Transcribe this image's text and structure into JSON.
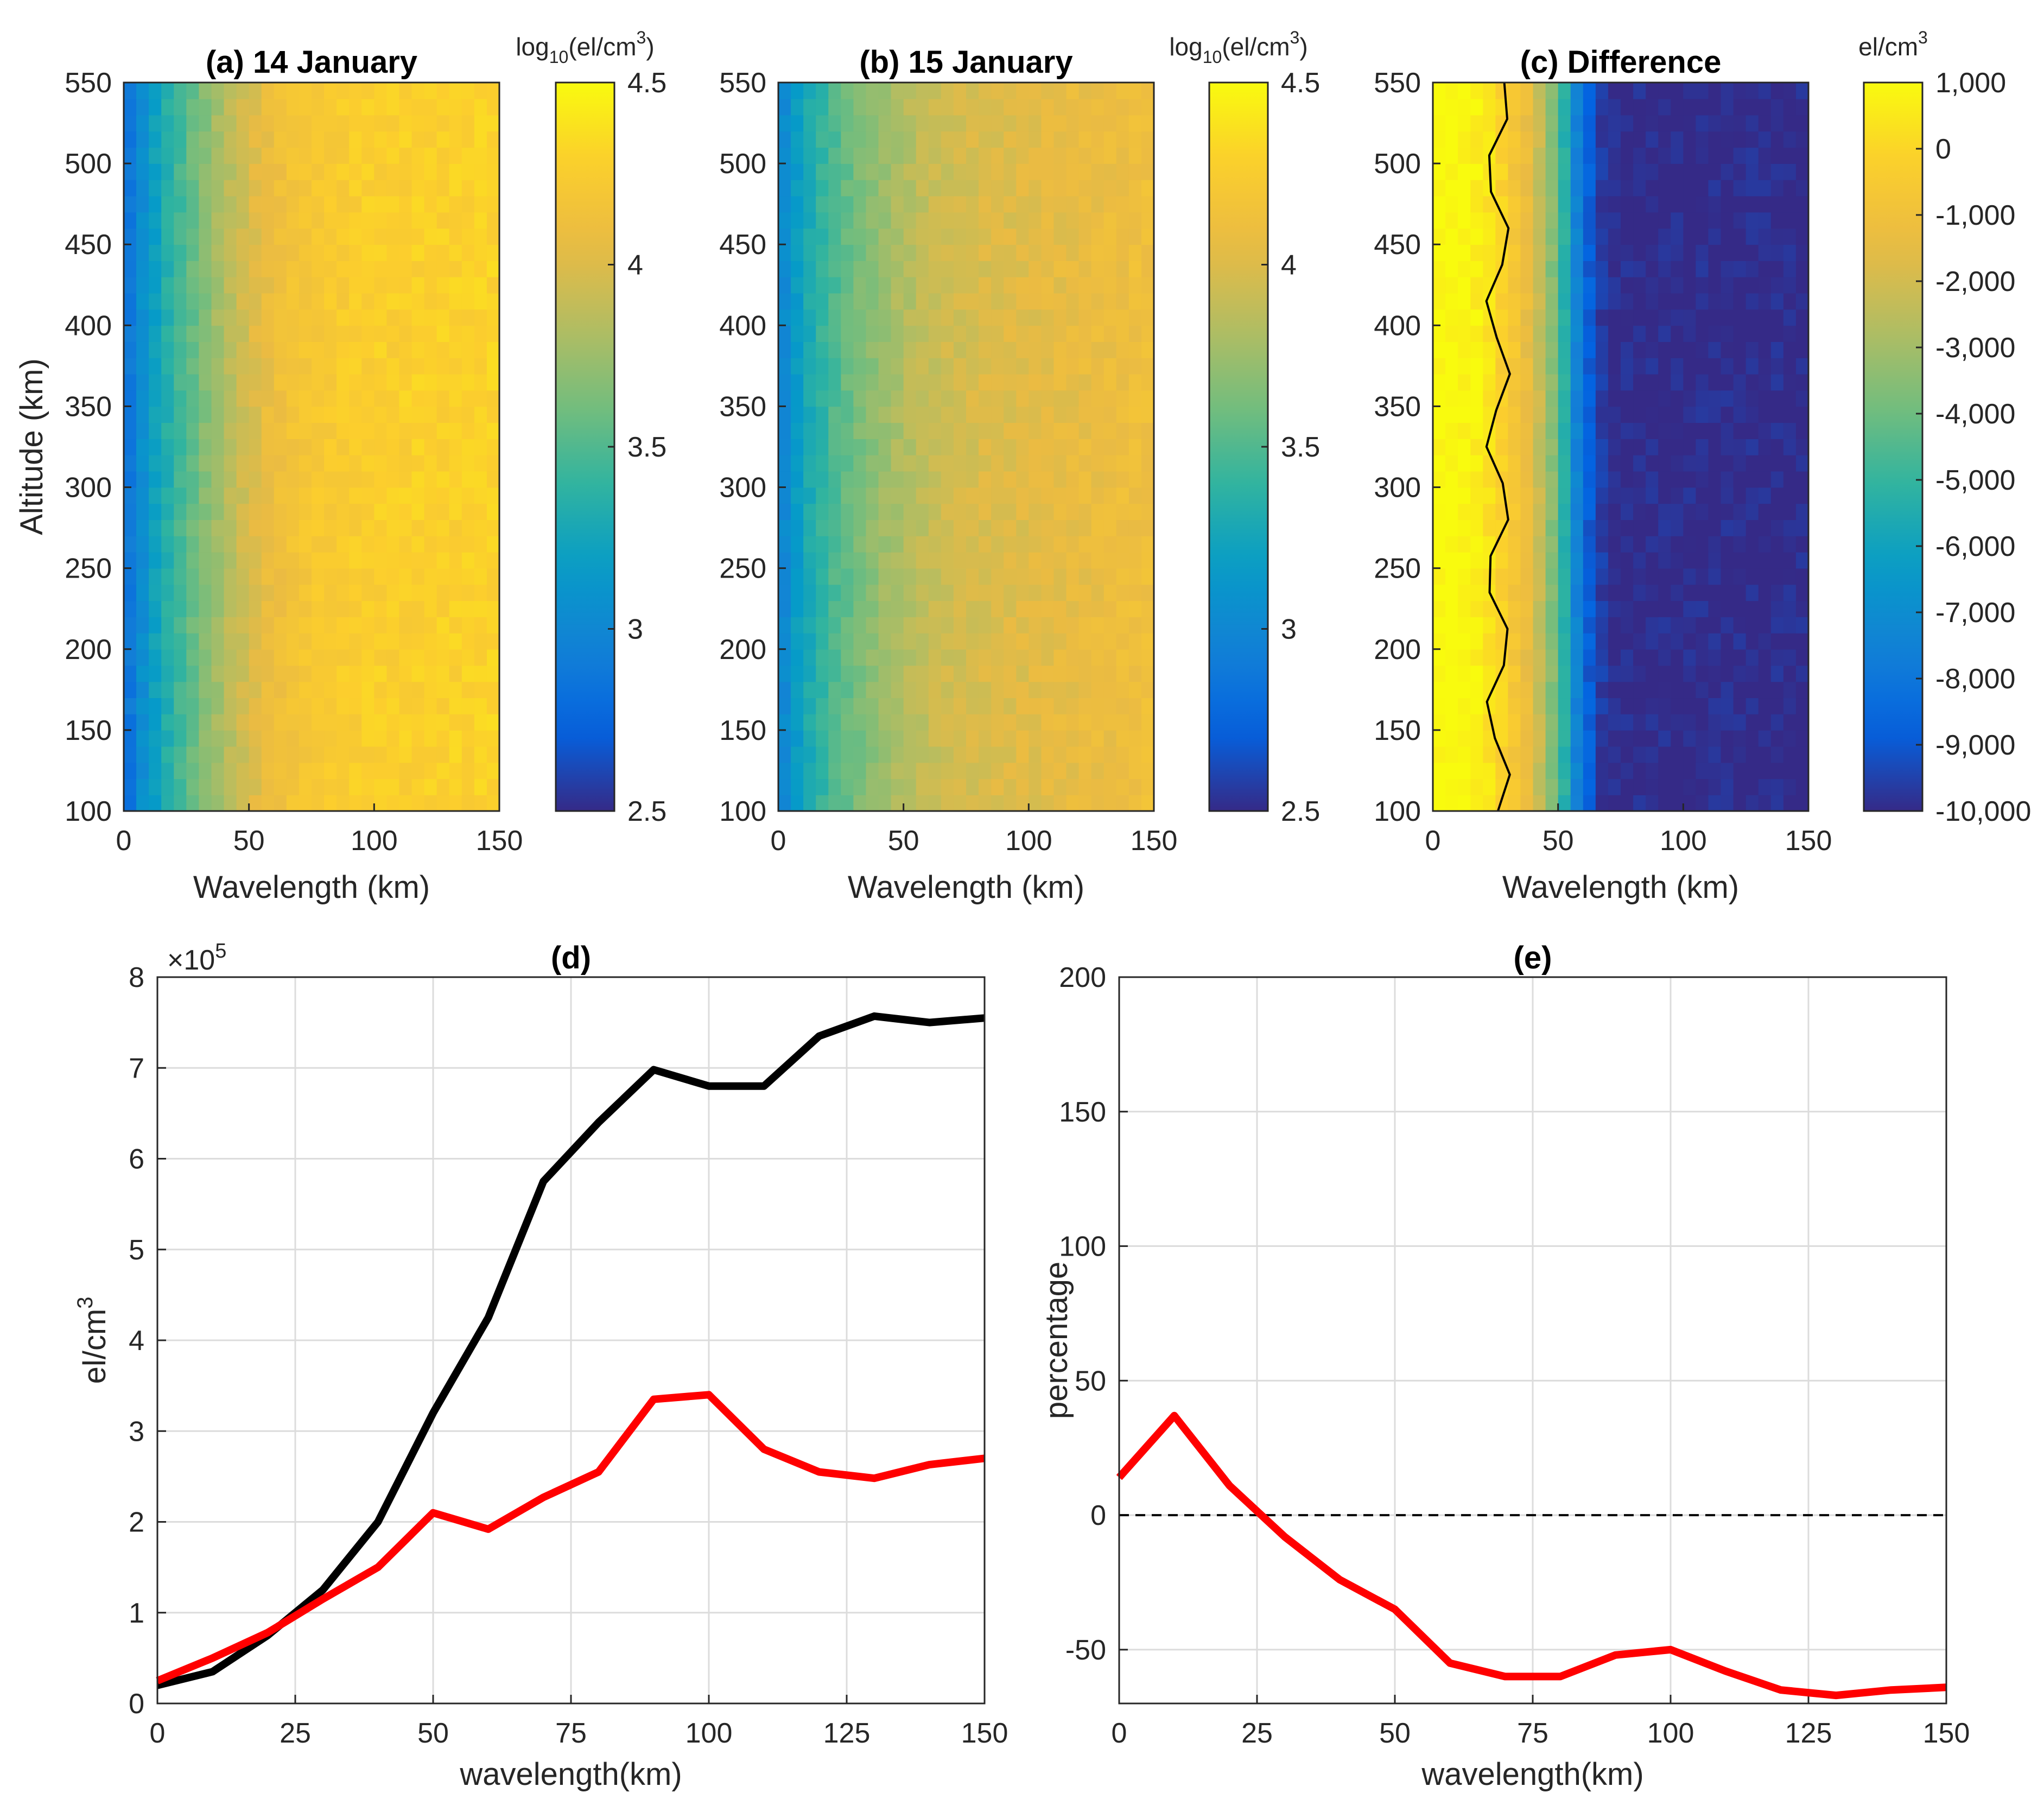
{
  "chart_data": [
    {
      "type": "heatmap",
      "title": "(a) 14 January",
      "xlabel": "Wavelength (km)",
      "ylabel": "Altitude (km)",
      "xlim": [
        0,
        150
      ],
      "ylim": [
        100,
        550
      ],
      "xticks": [
        "0",
        "50",
        "100",
        "150"
      ],
      "yticks": [
        "100",
        "150",
        "200",
        "250",
        "300",
        "350",
        "400",
        "450",
        "500",
        "550"
      ],
      "colorbar": {
        "label_main": "log",
        "label_sub": "10",
        "label_rest": "(el/cm",
        "label_sup": "3",
        "label_end": ")",
        "range": [
          2.5,
          4.5
        ],
        "ticks": [
          "2.5",
          "3",
          "3.5",
          "4",
          "4.5"
        ],
        "colormap": "parula"
      },
      "x_centers": [
        0,
        10,
        20,
        30,
        40,
        50,
        60,
        70,
        80,
        90,
        100,
        110,
        120,
        130,
        140,
        150
      ],
      "values_by_x": [
        2.78,
        3.15,
        3.4,
        3.62,
        3.82,
        3.98,
        4.1,
        4.18,
        4.22,
        4.25,
        4.27,
        4.27,
        4.28,
        4.28,
        4.29,
        4.3
      ]
    },
    {
      "type": "heatmap",
      "title": "(b) 15 January",
      "xlabel": "Wavelength (km)",
      "ylabel": "",
      "xlim": [
        0,
        150
      ],
      "ylim": [
        100,
        550
      ],
      "xticks": [
        "0",
        "50",
        "100",
        "150"
      ],
      "yticks": [
        "100",
        "150",
        "200",
        "250",
        "300",
        "350",
        "400",
        "450",
        "500",
        "550"
      ],
      "colorbar": {
        "label_main": "log",
        "label_sub": "10",
        "label_rest": "(el/cm",
        "label_sup": "3",
        "label_end": ")",
        "range": [
          2.5,
          4.5
        ],
        "ticks": [
          "2.5",
          "3",
          "3.5",
          "4",
          "4.5"
        ],
        "colormap": "parula"
      },
      "x_centers": [
        0,
        10,
        20,
        30,
        40,
        50,
        60,
        70,
        80,
        90,
        100,
        110,
        120,
        130,
        140,
        150
      ],
      "values_by_x": [
        2.95,
        3.25,
        3.45,
        3.6,
        3.72,
        3.82,
        3.9,
        3.95,
        3.98,
        4.0,
        4.02,
        4.04,
        4.06,
        4.08,
        4.1,
        4.12
      ]
    },
    {
      "type": "heatmap",
      "title": "(c) Difference",
      "xlabel": "Wavelength (km)",
      "ylabel": "",
      "xlim": [
        0,
        150
      ],
      "ylim": [
        100,
        550
      ],
      "xticks": [
        "0",
        "50",
        "100",
        "150"
      ],
      "yticks": [
        "100",
        "150",
        "200",
        "250",
        "300",
        "350",
        "400",
        "450",
        "500",
        "550"
      ],
      "colorbar": {
        "label_main": "el/cm",
        "label_sup": "3",
        "range": [
          -10000,
          1000
        ],
        "ticks": [
          "-10,000",
          "-9,000",
          "-8,000",
          "-7,000",
          "-6,000",
          "-5,000",
          "-4,000",
          "-3,000",
          "-2,000",
          "-1,000",
          "0",
          "1,000"
        ],
        "colormap": "parula"
      },
      "x_centers": [
        0,
        10,
        20,
        30,
        40,
        50,
        60,
        70,
        80,
        90,
        100,
        110,
        120,
        130,
        140,
        150
      ],
      "values_by_x": [
        1000,
        1000,
        600,
        -400,
        -1600,
        -4200,
        -8500,
        -10000,
        -10000,
        -10000,
        -10000,
        -10000,
        -10000,
        -10000,
        -10000,
        -10000
      ],
      "contour_level": 0
    },
    {
      "type": "line",
      "title": "(d)",
      "xlabel": "wavelength(km)",
      "ylabel_main": "el/cm",
      "ylabel_sup": "3",
      "exponent_base": "×10",
      "exponent_power": "5",
      "xlim": [
        0,
        150
      ],
      "ylim": [
        0,
        8
      ],
      "xticks": [
        "0",
        "25",
        "50",
        "75",
        "100",
        "125",
        "150"
      ],
      "yticks": [
        "0",
        "1",
        "2",
        "3",
        "4",
        "5",
        "6",
        "7",
        "8"
      ],
      "grid": true,
      "x": [
        0,
        10,
        20,
        30,
        40,
        50,
        60,
        70,
        80,
        90,
        100,
        110,
        120,
        130,
        140,
        150
      ],
      "series": [
        {
          "color": "#000000",
          "values": [
            0.2,
            0.35,
            0.75,
            1.25,
            2.0,
            3.2,
            4.25,
            5.75,
            6.4,
            6.98,
            6.8,
            6.8,
            7.35,
            7.57,
            7.5,
            7.55
          ]
        },
        {
          "color": "#ff0000",
          "values": [
            0.25,
            0.5,
            0.78,
            1.15,
            1.5,
            2.1,
            1.92,
            2.27,
            2.55,
            3.35,
            3.4,
            2.8,
            2.55,
            2.48,
            2.63,
            2.7
          ]
        }
      ]
    },
    {
      "type": "line",
      "title": "(e)",
      "xlabel": "wavelength(km)",
      "ylabel": "percentage",
      "xlim": [
        0,
        150
      ],
      "ylim": [
        -70,
        200
      ],
      "xticks": [
        "0",
        "25",
        "50",
        "75",
        "100",
        "125",
        "150"
      ],
      "yticks": [
        "-50",
        "0",
        "50",
        "100",
        "150",
        "200"
      ],
      "grid": true,
      "x": [
        0,
        10,
        20,
        30,
        40,
        50,
        60,
        70,
        80,
        90,
        100,
        110,
        120,
        130,
        140,
        150
      ],
      "series": [
        {
          "color": "#ff0000",
          "values": [
            14,
            37,
            11,
            -8,
            -24,
            -35,
            -55,
            -60,
            -60,
            -52,
            -50,
            -58,
            -65,
            -67,
            -65,
            -64
          ]
        }
      ],
      "reference_line": {
        "y": 0,
        "style": "dashed",
        "color": "#000000"
      }
    }
  ]
}
